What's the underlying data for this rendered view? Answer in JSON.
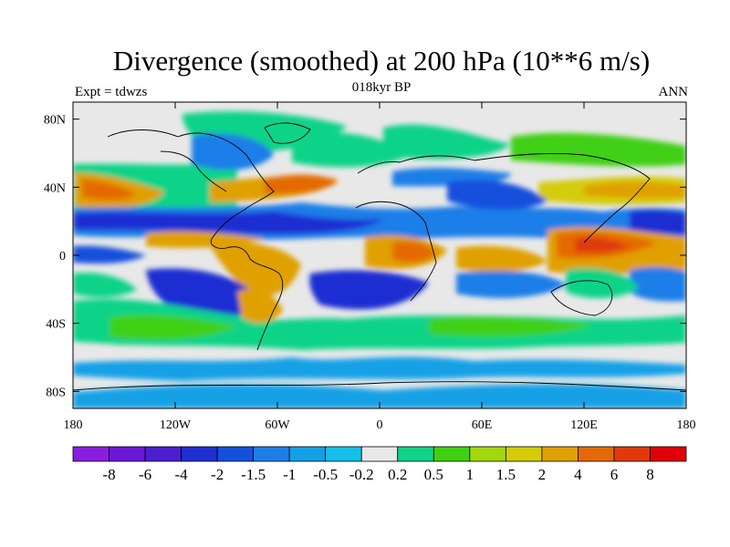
{
  "header": {
    "title": "Divergence (smoothed) at 200 hPa (10**6 m/s)",
    "subtitle": "018kyr BP",
    "left_label": "Expt = tdwzs",
    "right_label": "ANN"
  },
  "map": {
    "projection": "cylindrical equidistant",
    "lon_range": [
      -180,
      180
    ],
    "lat_range": [
      -90,
      90
    ],
    "x_ticks": [
      {
        "lon": -180,
        "label": "180"
      },
      {
        "lon": -120,
        "label": "120W"
      },
      {
        "lon": -60,
        "label": "60W"
      },
      {
        "lon": 0,
        "label": "0"
      },
      {
        "lon": 60,
        "label": "60E"
      },
      {
        "lon": 120,
        "label": "120E"
      },
      {
        "lon": 180,
        "label": "180"
      }
    ],
    "y_ticks": [
      {
        "lat": 80,
        "label": "80N"
      },
      {
        "lat": 40,
        "label": "40N"
      },
      {
        "lat": 0,
        "label": "0"
      },
      {
        "lat": -40,
        "label": "40S"
      },
      {
        "lat": -80,
        "label": "80S"
      }
    ]
  },
  "colorbar": {
    "colors": [
      "#8a1ee0",
      "#6b17d8",
      "#4a1fd0",
      "#1f2fd2",
      "#1550dc",
      "#1e7ee8",
      "#14a0e6",
      "#15c0e8",
      "#e8e8e8",
      "#10d388",
      "#3fd012",
      "#a3d80f",
      "#d4cc07",
      "#e0a003",
      "#e46a05",
      "#e03a0b",
      "#e0000a"
    ],
    "labels": [
      "-8",
      "-6",
      "-4",
      "-2",
      "-1.5",
      "-1",
      "-0.5",
      "-0.2",
      "0.2",
      "0.5",
      "1",
      "1.5",
      "2",
      "4",
      "6",
      "8"
    ]
  }
}
